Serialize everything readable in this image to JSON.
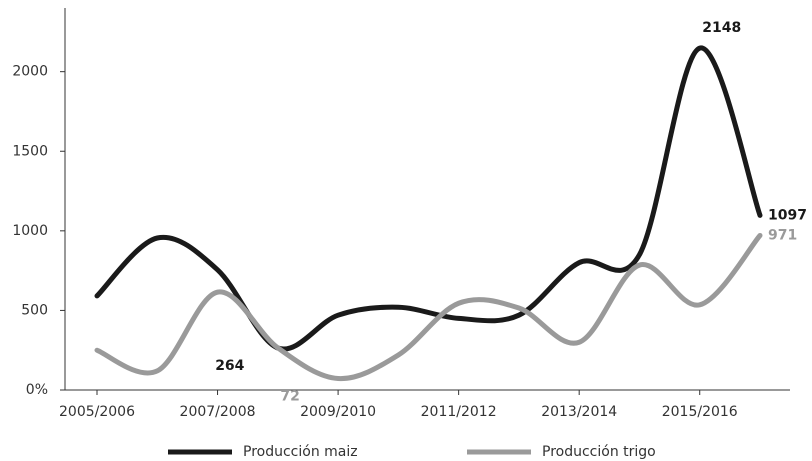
{
  "chart_data": {
    "type": "line",
    "categories": [
      "2005/2006",
      null,
      "2007/2008",
      null,
      "2009/2010",
      null,
      "2011/2012",
      null,
      "2013/2014",
      null,
      "2015/2016",
      null
    ],
    "series": [
      {
        "name": "Producción maiz",
        "color": "#1a1a1a",
        "values": [
          591,
          955,
          755,
          264,
          470,
          520,
          450,
          470,
          800,
          850,
          2148,
          1097
        ],
        "value_labels": [
          null,
          null,
          null,
          "264",
          null,
          null,
          null,
          null,
          null,
          null,
          "2148",
          "1097"
        ]
      },
      {
        "name": "Producción trigo",
        "color": "#9a9a9a",
        "values": [
          250,
          120,
          615,
          265,
          72,
          220,
          545,
          515,
          300,
          785,
          535,
          971
        ],
        "value_labels": [
          null,
          null,
          null,
          null,
          "72",
          null,
          null,
          null,
          null,
          null,
          null,
          "971"
        ]
      }
    ],
    "ylim": [
      0,
      2400
    ],
    "yticks": [
      {
        "value": 0,
        "label": "0%"
      },
      500,
      1000,
      1500,
      2000
    ],
    "legend": "bottom"
  }
}
